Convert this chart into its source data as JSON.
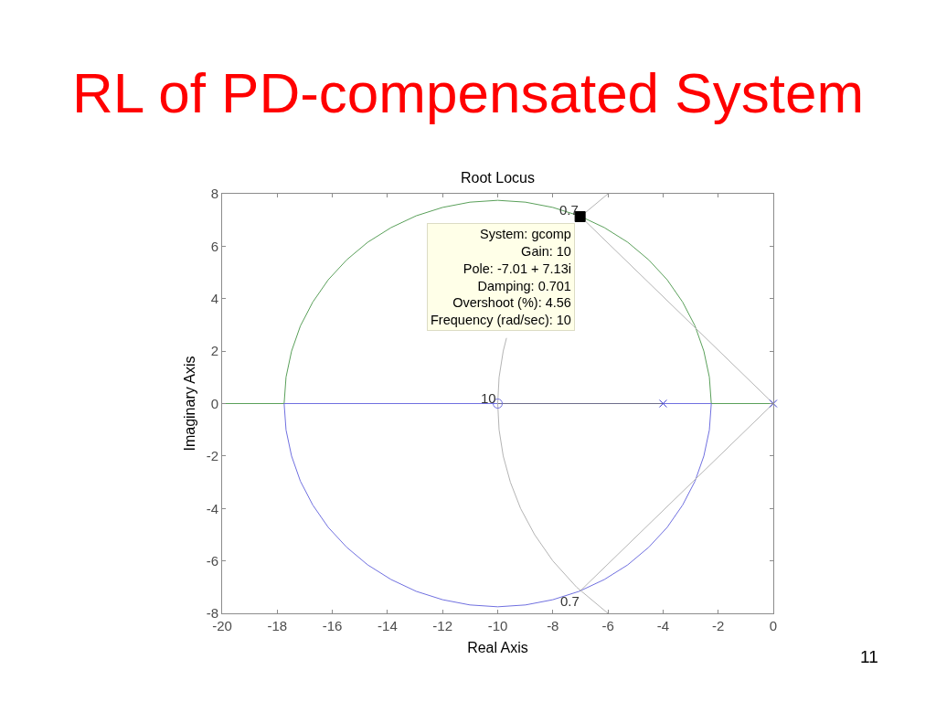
{
  "chart_data": {
    "type": "line",
    "title": "RL of PD-compensated System",
    "subtitle": "Root Locus",
    "xlabel": "Real Axis",
    "ylabel": "Imaginary Axis",
    "xlim": [
      -20,
      0
    ],
    "ylim": [
      -8,
      8
    ],
    "xticks": [
      -20,
      -18,
      -16,
      -14,
      -12,
      -10,
      -8,
      -6,
      -4,
      -2,
      0
    ],
    "yticks": [
      -8,
      -6,
      -4,
      -2,
      0,
      2,
      4,
      6,
      8
    ],
    "marker": "none",
    "ref_lines": [
      {
        "axis": "y",
        "value": 0,
        "color": "#6e6e8c"
      }
    ],
    "series": [
      {
        "color": "#5aa05a",
        "x": [
          0,
          -2.25,
          -2.32,
          -2.52,
          -2.84,
          -3.29,
          -3.85,
          -4.52,
          -5.28,
          -6.13,
          -7.04,
          -8.0,
          -8.99,
          -10.0,
          -11.01,
          -12.0,
          -12.96,
          -13.87,
          -14.72,
          -15.48,
          -16.15,
          -16.71,
          -17.16,
          -17.48,
          -17.68,
          -17.75,
          -20
        ],
        "values": [
          0,
          0,
          1.01,
          2.0,
          2.96,
          3.87,
          4.72,
          5.48,
          6.15,
          6.71,
          7.16,
          7.48,
          7.68,
          7.75,
          7.68,
          7.48,
          7.16,
          6.71,
          6.15,
          5.48,
          4.72,
          3.87,
          2.96,
          2.0,
          1.01,
          0,
          0
        ]
      },
      {
        "color": "#7070e0",
        "x": [
          -4,
          -2.25,
          -2.32,
          -2.52,
          -2.84,
          -3.29,
          -3.85,
          -4.52,
          -5.28,
          -6.13,
          -7.04,
          -8.0,
          -8.99,
          -10.0,
          -11.01,
          -12.0,
          -12.96,
          -13.87,
          -14.72,
          -15.48,
          -16.15,
          -16.71,
          -17.16,
          -17.48,
          -17.68,
          -17.75,
          -10
        ],
        "values": [
          0,
          0,
          -1.01,
          -2.0,
          -2.96,
          -3.87,
          -4.72,
          -5.48,
          -6.15,
          -6.71,
          -7.16,
          -7.48,
          -7.68,
          -7.75,
          -7.68,
          -7.48,
          -7.16,
          -6.71,
          -6.15,
          -5.48,
          -4.72,
          -3.87,
          -2.96,
          -2.0,
          -1.01,
          0,
          0
        ]
      },
      {
        "color": "#b4b4b4",
        "x": [
          -7.0,
          0,
          -7.0
        ],
        "values": [
          7.14,
          0,
          -7.14
        ]
      },
      {
        "color": "#b4b4b4",
        "x": [
          -6.0,
          -7.14,
          -8.0,
          -8.66,
          -9.17,
          -9.54,
          -9.68,
          -9.8,
          -9.95,
          -10.0,
          -9.95,
          -9.8,
          -9.54,
          -9.17,
          -8.66,
          -8.0,
          -7.14,
          -6.0
        ],
        "values": [
          8,
          7,
          null,
          null,
          null,
          null,
          2.5,
          2,
          1,
          0,
          -1,
          -2,
          -3,
          -4,
          -5,
          -6,
          -7,
          -8
        ]
      },
      {
        "type": "scatter",
        "marker": "cross",
        "color": "#3c3cd0",
        "x": [
          0,
          -4
        ],
        "values": [
          0,
          0
        ]
      },
      {
        "type": "scatter",
        "marker": "circle",
        "color": "#7070e0",
        "x": [
          -10
        ],
        "values": [
          0
        ]
      },
      {
        "type": "scatter",
        "marker": "square",
        "color": "#000000",
        "x": [
          -7.01
        ],
        "values": [
          7.13
        ]
      }
    ],
    "annotations": [
      {
        "text": "System: gcomp\nGain: 10\nPole: -7.01 + 7.13i\nDamping: 0.701\nOvershoot (%): 4.56\nFrequency (rad/sec): 10",
        "x": -7.01,
        "y": 7.13
      },
      "0.7",
      "0.7",
      "10",
      "11"
    ]
  }
}
